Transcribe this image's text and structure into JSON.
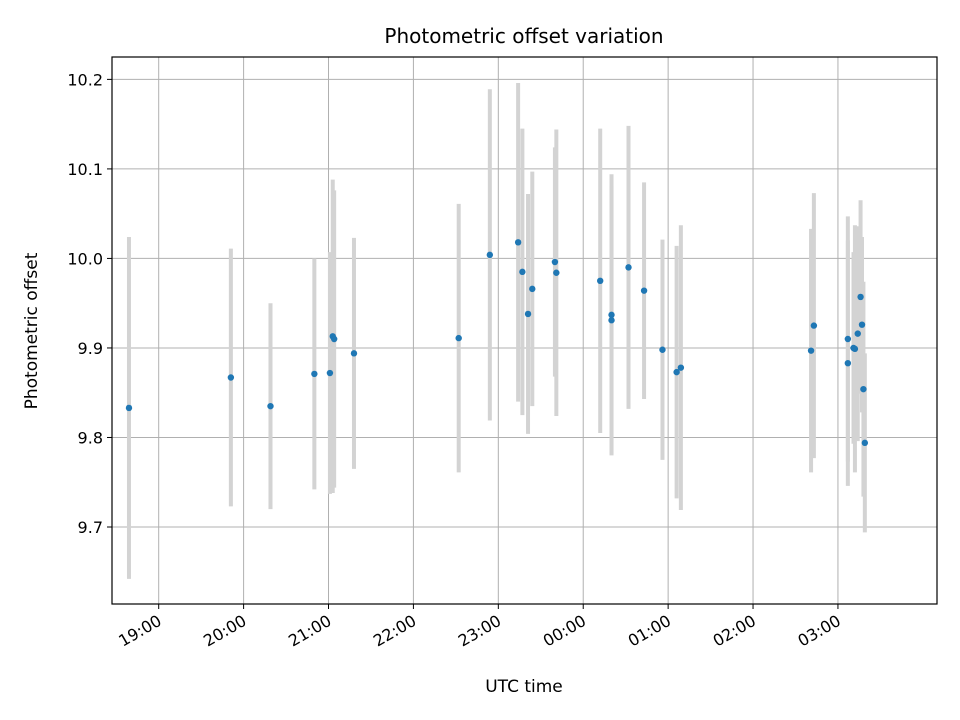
{
  "chart_data": {
    "type": "scatter",
    "title": "Photometric offset variation",
    "xlabel": "UTC time",
    "ylabel": "Photometric offset",
    "grid": true,
    "x_unit": "UTC time (HH:MM)",
    "xlim": [
      "18:27",
      "04:10"
    ],
    "ylim": [
      9.614,
      10.225
    ],
    "x_ticks": [
      "19:00",
      "20:00",
      "21:00",
      "22:00",
      "23:00",
      "00:00",
      "01:00",
      "02:00",
      "03:00"
    ],
    "y_ticks": [
      "9.7",
      "9.8",
      "9.9",
      "10.0",
      "10.1",
      "10.2"
    ],
    "colors": {
      "points": "#1f77b4",
      "errorbars": "#d3d3d3",
      "grid": "#b0b0b0"
    },
    "series": [
      {
        "points": [
          {
            "x": "18:39",
            "y": 9.833,
            "err": 0.191
          },
          {
            "x": "19:51",
            "y": 9.867,
            "err": 0.144
          },
          {
            "x": "20:19",
            "y": 9.835,
            "err": 0.115
          },
          {
            "x": "20:50",
            "y": 9.871,
            "err": 0.129
          },
          {
            "x": "21:01",
            "y": 9.872,
            "err": 0.135
          },
          {
            "x": "21:03",
            "y": 9.913,
            "err": 0.175
          },
          {
            "x": "21:04",
            "y": 9.91,
            "err": 0.166
          },
          {
            "x": "21:18",
            "y": 9.894,
            "err": 0.129
          },
          {
            "x": "22:32",
            "y": 9.911,
            "err": 0.15
          },
          {
            "x": "22:54",
            "y": 10.004,
            "err": 0.185
          },
          {
            "x": "23:14",
            "y": 10.018,
            "err": 0.178
          },
          {
            "x": "23:17",
            "y": 9.985,
            "err": 0.16
          },
          {
            "x": "23:21",
            "y": 9.938,
            "err": 0.134
          },
          {
            "x": "23:24",
            "y": 9.966,
            "err": 0.131
          },
          {
            "x": "23:40",
            "y": 9.996,
            "err": 0.128
          },
          {
            "x": "23:41",
            "y": 9.984,
            "err": 0.16
          },
          {
            "x": "00:12",
            "y": 9.975,
            "err": 0.17
          },
          {
            "x": "00:20",
            "y": 9.937,
            "err": 0.157
          },
          {
            "x": "00:20",
            "y": 9.931,
            "err": 0.15
          },
          {
            "x": "00:32",
            "y": 9.99,
            "err": 0.158
          },
          {
            "x": "00:43",
            "y": 9.964,
            "err": 0.121
          },
          {
            "x": "00:56",
            "y": 9.898,
            "err": 0.123
          },
          {
            "x": "01:06",
            "y": 9.873,
            "err": 0.141
          },
          {
            "x": "01:09",
            "y": 9.878,
            "err": 0.159
          },
          {
            "x": "02:41",
            "y": 9.897,
            "err": 0.136
          },
          {
            "x": "02:43",
            "y": 9.925,
            "err": 0.148
          },
          {
            "x": "03:07",
            "y": 9.91,
            "err": 0.137
          },
          {
            "x": "03:07",
            "y": 9.883,
            "err": 0.137
          },
          {
            "x": "03:11",
            "y": 9.9,
            "err": 0.107
          },
          {
            "x": "03:12",
            "y": 9.899,
            "err": 0.138
          },
          {
            "x": "03:14",
            "y": 9.916,
            "err": 0.12
          },
          {
            "x": "03:16",
            "y": 9.957,
            "err": 0.108
          },
          {
            "x": "03:17",
            "y": 9.926,
            "err": 0.098
          },
          {
            "x": "03:18",
            "y": 9.854,
            "err": 0.12
          },
          {
            "x": "03:19",
            "y": 9.794,
            "err": 0.1
          }
        ]
      }
    ]
  }
}
